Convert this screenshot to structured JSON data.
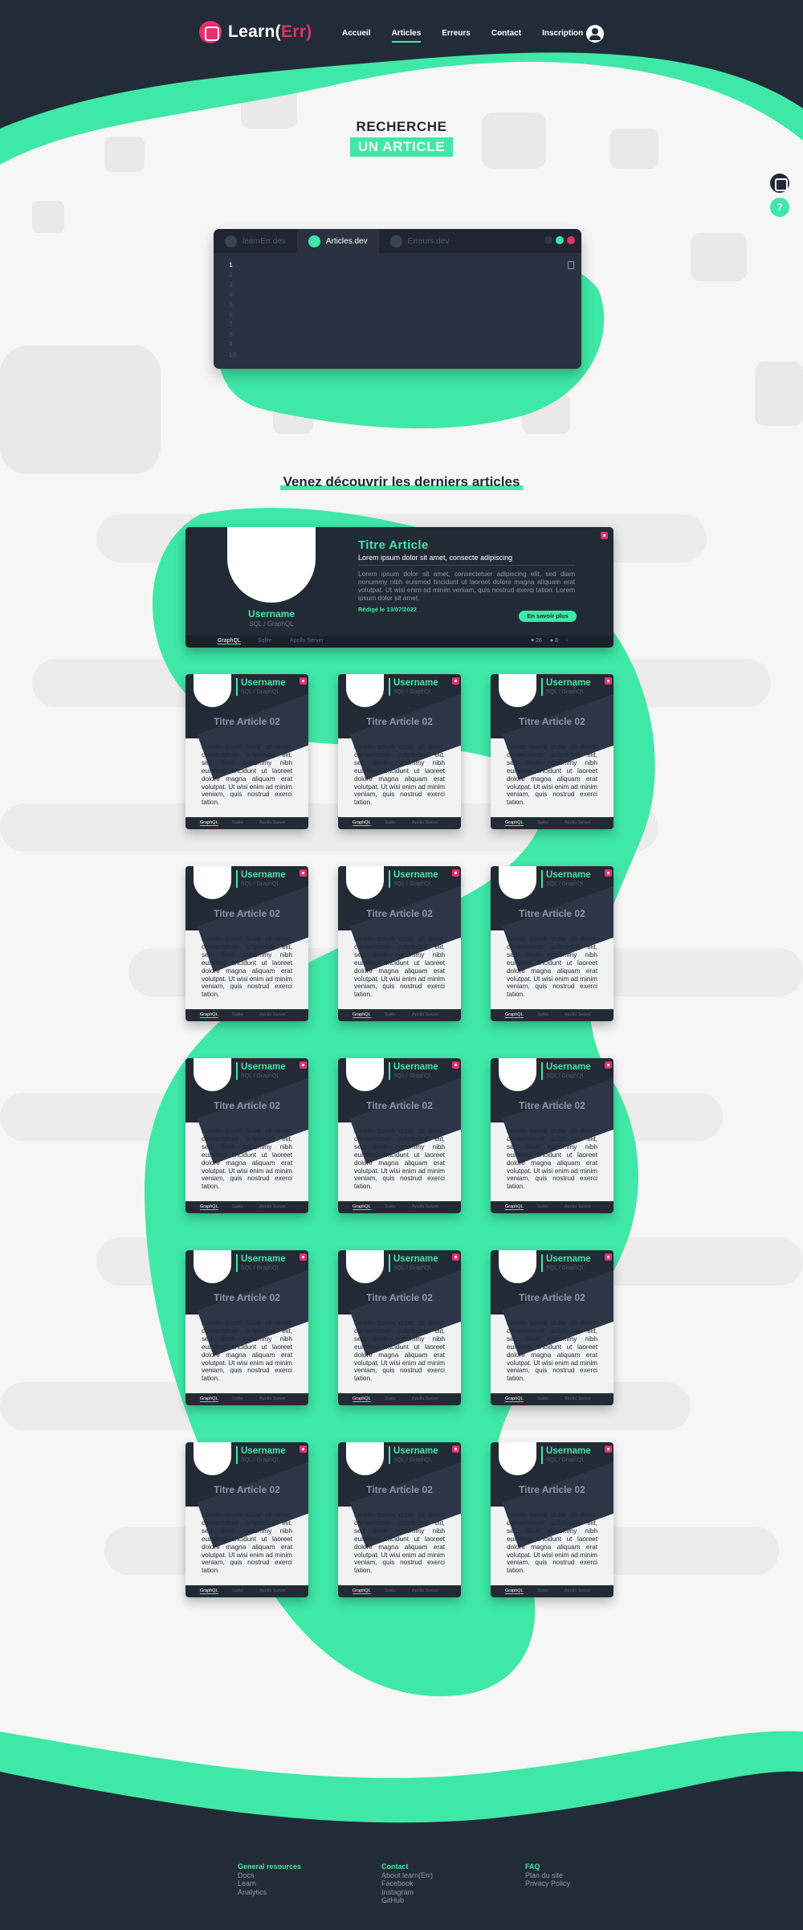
{
  "brand": {
    "name_prefix": "Learn(",
    "name_accent": "Err",
    "name_suffix": ")"
  },
  "nav": {
    "items": [
      {
        "label": "Accueil",
        "active": false
      },
      {
        "label": "Articles",
        "active": true
      },
      {
        "label": "Erreurs",
        "active": false
      },
      {
        "label": "Contact",
        "active": false
      },
      {
        "label": "Inscription",
        "active": false
      }
    ],
    "user_icon": "user-circle-icon"
  },
  "hero": {
    "line1": "RECHERCHE",
    "line2": "UN ARTICLE"
  },
  "side_buttons": [
    {
      "icon": "logo-icon"
    },
    {
      "icon": "help-icon",
      "glyph": "?"
    }
  ],
  "editor": {
    "tabs": [
      {
        "label": "learnErr.dev",
        "active": false
      },
      {
        "label": "Articles.dev",
        "active": true
      },
      {
        "label": "Erreurs.dev",
        "active": false
      }
    ],
    "window_dots": [
      "#2f3847",
      "#3fe8a7",
      "#e7306b"
    ],
    "line_numbers": [
      "1",
      "2",
      "3",
      "4",
      "5",
      "6",
      "7",
      "8",
      "9",
      "10"
    ]
  },
  "section_heading": "Venez découvrir les derniers articles",
  "featured": {
    "username": "Username",
    "tags": "SQL / GraphQL",
    "title": "Titre Article",
    "subtitle": "Lorem ipsum dolor sit amet, consecte adipiscing",
    "excerpt": "Lorem ipsum dolor sit amet, consectetuer adipiscing elit, sed diam nonummy nibh euismod tincidunt ut laoreet dolore magna aliquam erat volutpat. Ut wisi enim ad minim veniam, quis nostrud exerci tation. Lorem ipsum dolor sit amet.",
    "date": "Rédigé le 13/07/2022",
    "cta": "En savoir plus",
    "footer_tabs": [
      "GraphQL",
      "Sqlite",
      "Apollo Server"
    ],
    "likes": "26",
    "comments": "8"
  },
  "cards": [
    {
      "username": "Username",
      "tags": "SQL / GraphQL",
      "title": "Titre Article 02",
      "excerpt": "Lorem ipsum dolor sit amet, consectetuer adipiscing elit, sed diam nonummy nibh euismod tincidunt ut laoreet dolore magna aliquam erat volutpat. Ut wisi enim ad minim veniam, quis nostrud exerci tation.",
      "tabs": [
        "GraphQL",
        "Sqlite",
        "Apollo Server"
      ]
    },
    {
      "username": "Username",
      "tags": "SQL / GraphQL",
      "title": "Titre Article 02",
      "excerpt": "Lorem ipsum dolor sit amet, consectetuer adipiscing elit, sed diam nonummy nibh euismod tincidunt ut laoreet dolore magna aliquam erat volutpat. Ut wisi enim ad minim veniam, quis nostrud exerci tation.",
      "tabs": [
        "GraphQL",
        "Sqlite",
        "Apollo Server"
      ]
    },
    {
      "username": "Username",
      "tags": "SQL / GraphQL",
      "title": "Titre Article 02",
      "excerpt": "Lorem ipsum dolor sit amet, consectetuer adipiscing elit, sed diam nonummy nibh euismod tincidunt ut laoreet dolore magna aliquam erat volutpat. Ut wisi enim ad minim veniam, quis nostrud exerci tation.",
      "tabs": [
        "GraphQL",
        "Sqlite",
        "Apollo Server"
      ]
    },
    {
      "username": "Username",
      "tags": "SQL / GraphQL",
      "title": "Titre Article 02",
      "excerpt": "Lorem ipsum dolor sit amet, consectetuer adipiscing elit, sed diam nonummy nibh euismod tincidunt ut laoreet dolore magna aliquam erat volutpat. Ut wisi enim ad minim veniam, quis nostrud exerci tation.",
      "tabs": [
        "GraphQL",
        "Sqlite",
        "Apollo Server"
      ]
    },
    {
      "username": "Username",
      "tags": "SQL / GraphQL",
      "title": "Titre Article 02",
      "excerpt": "Lorem ipsum dolor sit amet, consectetuer adipiscing elit, sed diam nonummy nibh euismod tincidunt ut laoreet dolore magna aliquam erat volutpat. Ut wisi enim ad minim veniam, quis nostrud exerci tation.",
      "tabs": [
        "GraphQL",
        "Sqlite",
        "Apollo Server"
      ]
    },
    {
      "username": "Username",
      "tags": "SQL / GraphQL",
      "title": "Titre Article 02",
      "excerpt": "Lorem ipsum dolor sit amet, consectetuer adipiscing elit, sed diam nonummy nibh euismod tincidunt ut laoreet dolore magna aliquam erat volutpat. Ut wisi enim ad minim veniam, quis nostrud exerci tation.",
      "tabs": [
        "GraphQL",
        "Sqlite",
        "Apollo Server"
      ]
    },
    {
      "username": "Username",
      "tags": "SQL / GraphQL",
      "title": "Titre Article 02",
      "excerpt": "Lorem ipsum dolor sit amet, consectetuer adipiscing elit, sed diam nonummy nibh euismod tincidunt ut laoreet dolore magna aliquam erat volutpat. Ut wisi enim ad minim veniam, quis nostrud exerci tation.",
      "tabs": [
        "GraphQL",
        "Sqlite",
        "Apollo Server"
      ]
    },
    {
      "username": "Username",
      "tags": "SQL / GraphQL",
      "title": "Titre Article 02",
      "excerpt": "Lorem ipsum dolor sit amet, consectetuer adipiscing elit, sed diam nonummy nibh euismod tincidunt ut laoreet dolore magna aliquam erat volutpat. Ut wisi enim ad minim veniam, quis nostrud exerci tation.",
      "tabs": [
        "GraphQL",
        "Sqlite",
        "Apollo Server"
      ]
    },
    {
      "username": "Username",
      "tags": "SQL / GraphQL",
      "title": "Titre Article 02",
      "excerpt": "Lorem ipsum dolor sit amet, consectetuer adipiscing elit, sed diam nonummy nibh euismod tincidunt ut laoreet dolore magna aliquam erat volutpat. Ut wisi enim ad minim veniam, quis nostrud exerci tation.",
      "tabs": [
        "GraphQL",
        "Sqlite",
        "Apollo Server"
      ]
    },
    {
      "username": "Username",
      "tags": "SQL / GraphQL",
      "title": "Titre Article 02",
      "excerpt": "Lorem ipsum dolor sit amet, consectetuer adipiscing elit, sed diam nonummy nibh euismod tincidunt ut laoreet dolore magna aliquam erat volutpat. Ut wisi enim ad minim veniam, quis nostrud exerci tation.",
      "tabs": [
        "GraphQL",
        "Sqlite",
        "Apollo Server"
      ]
    },
    {
      "username": "Username",
      "tags": "SQL / GraphQL",
      "title": "Titre Article 02",
      "excerpt": "Lorem ipsum dolor sit amet, consectetuer adipiscing elit, sed diam nonummy nibh euismod tincidunt ut laoreet dolore magna aliquam erat volutpat. Ut wisi enim ad minim veniam, quis nostrud exerci tation.",
      "tabs": [
        "GraphQL",
        "Sqlite",
        "Apollo Server"
      ]
    },
    {
      "username": "Username",
      "tags": "SQL / GraphQL",
      "title": "Titre Article 02",
      "excerpt": "Lorem ipsum dolor sit amet, consectetuer adipiscing elit, sed diam nonummy nibh euismod tincidunt ut laoreet dolore magna aliquam erat volutpat. Ut wisi enim ad minim veniam, quis nostrud exerci tation.",
      "tabs": [
        "GraphQL",
        "Sqlite",
        "Apollo Server"
      ]
    },
    {
      "username": "Username",
      "tags": "SQL / GraphQL",
      "title": "Titre Article 02",
      "excerpt": "Lorem ipsum dolor sit amet, consectetuer adipiscing elit, sed diam nonummy nibh euismod tincidunt ut laoreet dolore magna aliquam erat volutpat. Ut wisi enim ad minim veniam, quis nostrud exerci tation.",
      "tabs": [
        "GraphQL",
        "Sqlite",
        "Apollo Server"
      ]
    },
    {
      "username": "Username",
      "tags": "SQL / GraphQL",
      "title": "Titre Article 02",
      "excerpt": "Lorem ipsum dolor sit amet, consectetuer adipiscing elit, sed diam nonummy nibh euismod tincidunt ut laoreet dolore magna aliquam erat volutpat. Ut wisi enim ad minim veniam, quis nostrud exerci tation.",
      "tabs": [
        "GraphQL",
        "Sqlite",
        "Apollo Server"
      ]
    },
    {
      "username": "Username",
      "tags": "SQL / GraphQL",
      "title": "Titre Article 02",
      "excerpt": "Lorem ipsum dolor sit amet, consectetuer adipiscing elit, sed diam nonummy nibh euismod tincidunt ut laoreet dolore magna aliquam erat volutpat. Ut wisi enim ad minim veniam, quis nostrud exerci tation.",
      "tabs": [
        "GraphQL",
        "Sqlite",
        "Apollo Server"
      ]
    }
  ],
  "footer": {
    "columns": [
      {
        "heading": "General resources",
        "links": [
          "Docs",
          "Learn",
          "Analytics"
        ]
      },
      {
        "heading": "Contact",
        "links": [
          "About learn(Err)",
          "Facebook",
          "Instagram",
          "GitHub"
        ]
      },
      {
        "heading": "FAQ",
        "links": [
          "Plan du site",
          "Privacy Policy"
        ]
      }
    ]
  },
  "colors": {
    "dark": "#222b38",
    "accent": "#3fe8a7",
    "brand_pink": "#e7306b",
    "background": "#f6f6f6"
  }
}
